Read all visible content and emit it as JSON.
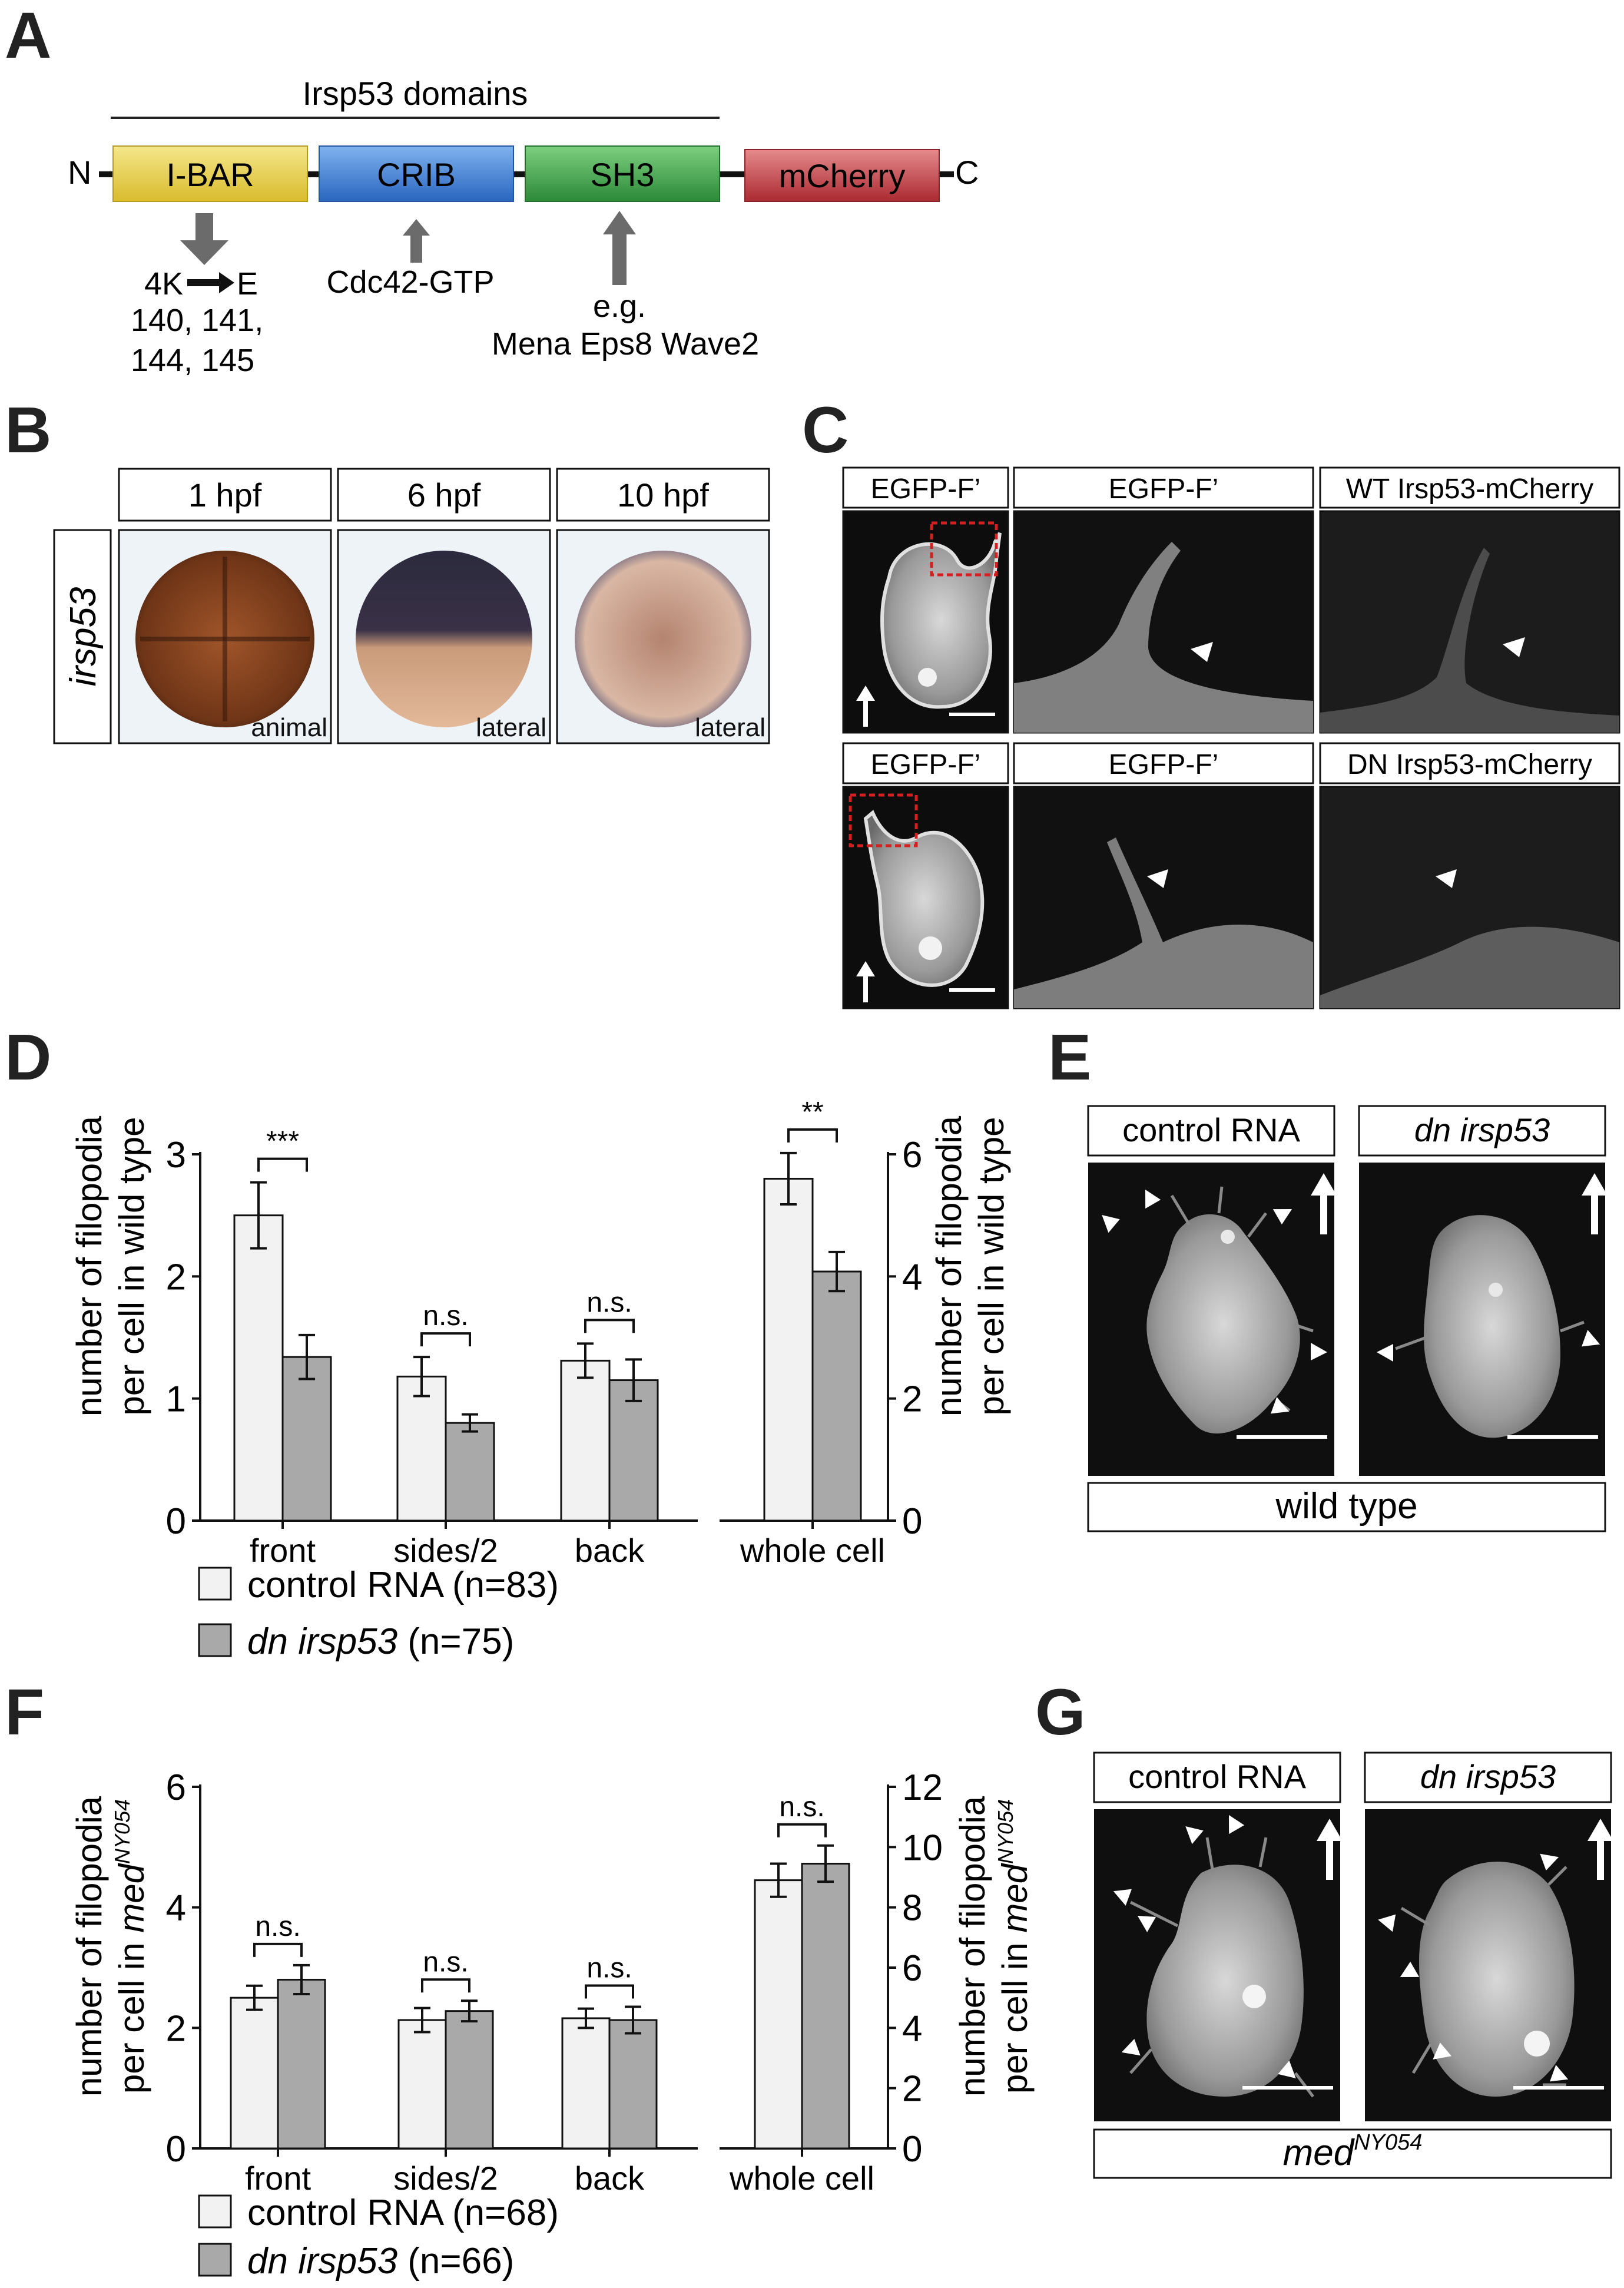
{
  "panel_letters": {
    "A": "A",
    "B": "B",
    "C": "C",
    "D": "D",
    "E": "E",
    "F": "F",
    "G": "G"
  },
  "panel_a": {
    "title": "Irsp53 domains",
    "n_term": "N",
    "c_term": "C",
    "domains": [
      {
        "label": "I-BAR",
        "color": "#e9d24b"
      },
      {
        "label": "CRIB",
        "color": "#3d7fd6"
      },
      {
        "label": "SH3",
        "color": "#3b9e46"
      },
      {
        "label": "mCherry",
        "color": "#c23a3f"
      }
    ],
    "mutation_from": "4K",
    "mutation_to": "E",
    "mutation_sites_1": "140, 141,",
    "mutation_sites_2": "144, 145",
    "crib_binder": "Cdc42-GTP",
    "sh3_eg": "e.g.",
    "sh3_binders": "Mena Eps8 Wave2"
  },
  "panel_b": {
    "row_label": "irsp53",
    "timepoints": [
      "1 hpf",
      "6 hpf",
      "10 hpf"
    ],
    "views": [
      "animal",
      "lateral",
      "lateral"
    ]
  },
  "panel_c": {
    "row1": [
      "EGFP-F’",
      "EGFP-F’",
      "WT Irsp53-mCherry"
    ],
    "row2": [
      "EGFP-F’",
      "EGFP-F’",
      "DN Irsp53-mCherry"
    ]
  },
  "panel_d": {
    "ylabel_line1": "number of filopodia",
    "ylabel_line2": "per cell in wild type",
    "legend": [
      "control RNA (n=83)",
      "dn irsp53 (n=75)"
    ],
    "legend_parts": [
      {
        "italic": "",
        "rest": "control RNA (n=83)"
      },
      {
        "italic": "dn irsp53",
        "rest": " (n=75)"
      }
    ],
    "left_ticks": [
      "0",
      "1",
      "2",
      "3"
    ],
    "right_ticks": [
      "0",
      "2",
      "4",
      "6"
    ],
    "categories": [
      "front",
      "sides/2",
      "back"
    ],
    "whole_label": "whole cell",
    "significance": [
      "***",
      "n.s.",
      "n.s.",
      "**"
    ]
  },
  "panel_e": {
    "headers": [
      "control RNA",
      "dn irsp53"
    ],
    "footer": "wild type"
  },
  "panel_f": {
    "ylabel_line1": "number of filopodia",
    "ylabel_line2_prefix": "per cell in ",
    "ylabel_italic": "med",
    "ylabel_sup": "NY054",
    "legend_parts": [
      {
        "italic": "",
        "rest": "control RNA (n=68)"
      },
      {
        "italic": "dn irsp53",
        "rest": " (n=66)"
      }
    ],
    "left_ticks": [
      "0",
      "2",
      "4",
      "6"
    ],
    "right_ticks": [
      "0",
      "2",
      "4",
      "6",
      "8",
      "10",
      "12"
    ],
    "categories": [
      "front",
      "sides/2",
      "back"
    ],
    "whole_label": "whole cell",
    "significance": [
      "n.s.",
      "n.s.",
      "n.s.",
      "n.s."
    ]
  },
  "panel_g": {
    "headers": [
      "control RNA",
      "dn irsp53"
    ],
    "footer_italic": "med",
    "footer_sup": "NY054"
  },
  "colors": {
    "control": "#f2f2f2",
    "dn": "#a9a9a9",
    "micrograph_bg": "#111111",
    "cell": "#b5b5b5",
    "roi": "#d42020",
    "arrow_gray": "#6b6b6b"
  },
  "chart_data": [
    {
      "type": "bar",
      "panel": "D",
      "categories": [
        "front",
        "sides/2",
        "back"
      ],
      "series": [
        {
          "name": "control RNA (n=83)",
          "values": [
            2.5,
            1.18,
            1.31
          ],
          "errors": [
            0.27,
            0.16,
            0.14
          ]
        },
        {
          "name": "dn irsp53 (n=75)",
          "values": [
            1.34,
            0.8,
            1.15
          ],
          "errors": [
            0.18,
            0.07,
            0.17
          ]
        }
      ],
      "ylabel": "number of filopodia per cell in wild type",
      "ylim": [
        0,
        3
      ],
      "significance": [
        "***",
        "n.s.",
        "n.s."
      ]
    },
    {
      "type": "bar",
      "panel": "D",
      "categories": [
        "whole cell"
      ],
      "series": [
        {
          "name": "control RNA (n=83)",
          "values": [
            5.6
          ],
          "errors": [
            0.42
          ]
        },
        {
          "name": "dn irsp53 (n=75)",
          "values": [
            4.08
          ],
          "errors": [
            0.32
          ]
        }
      ],
      "ylabel": "number of filopodia per cell in wild type",
      "ylim": [
        0,
        6
      ],
      "significance": [
        "**"
      ]
    },
    {
      "type": "bar",
      "panel": "F",
      "categories": [
        "front",
        "sides/2",
        "back"
      ],
      "series": [
        {
          "name": "control RNA (n=68)",
          "values": [
            2.5,
            2.13,
            2.16
          ],
          "errors": [
            0.2,
            0.2,
            0.16
          ]
        },
        {
          "name": "dn irsp53 (n=66)",
          "values": [
            2.8,
            2.28,
            2.13
          ],
          "errors": [
            0.24,
            0.17,
            0.22
          ]
        }
      ],
      "ylabel": "number of filopodia per cell in med NY054",
      "ylim": [
        0,
        6
      ],
      "significance": [
        "n.s.",
        "n.s.",
        "n.s."
      ]
    },
    {
      "type": "bar",
      "panel": "F",
      "categories": [
        "whole cell"
      ],
      "series": [
        {
          "name": "control RNA (n=68)",
          "values": [
            8.9
          ],
          "errors": [
            0.55
          ]
        },
        {
          "name": "dn irsp53 (n=66)",
          "values": [
            9.45
          ],
          "errors": [
            0.6
          ]
        }
      ],
      "ylabel": "number of filopodia per cell in med NY054",
      "ylim": [
        0,
        12
      ],
      "significance": [
        "n.s."
      ]
    }
  ]
}
